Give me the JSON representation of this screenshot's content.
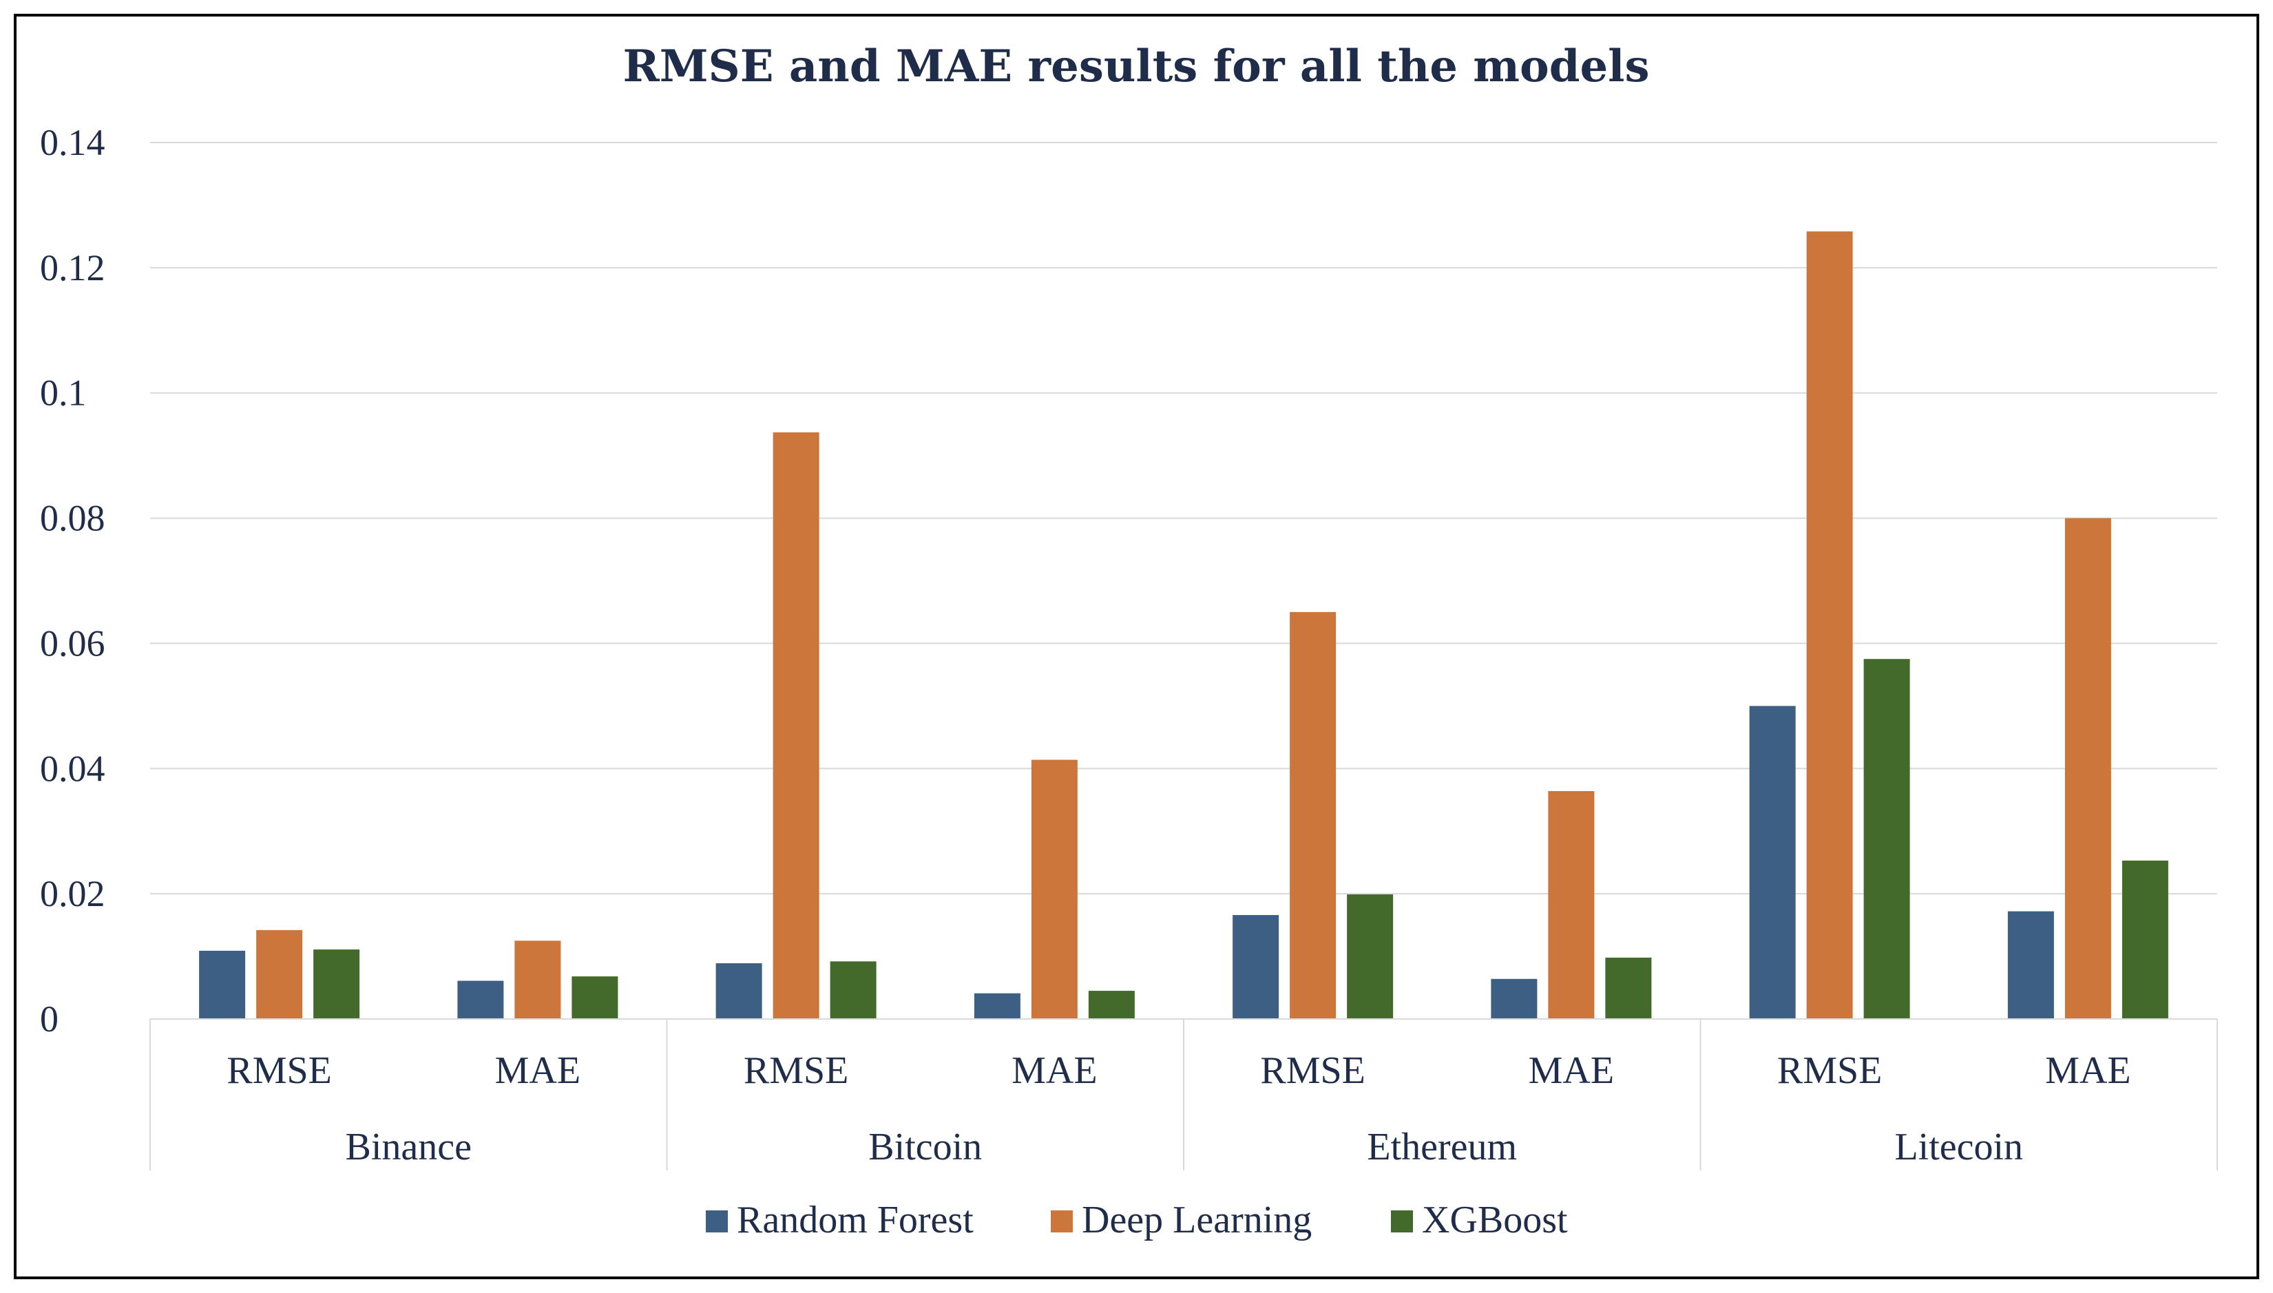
{
  "chart_data": {
    "type": "bar",
    "title": "RMSE and MAE results for all the models",
    "groups": [
      "Binance",
      "Bitcoin",
      "Ethereum",
      "Litecoin"
    ],
    "categories": [
      "RMSE",
      "MAE",
      "RMSE",
      "MAE",
      "RMSE",
      "MAE",
      "RMSE",
      "MAE"
    ],
    "series": [
      {
        "name": "Random Forest",
        "color": "#3e5f84",
        "values": [
          0.0109,
          0.0061,
          0.0089,
          0.0041,
          0.0166,
          0.0064,
          0.05,
          0.0172
        ]
      },
      {
        "name": "Deep Learning",
        "color": "#cc763b",
        "values": [
          0.0142,
          0.0125,
          0.0937,
          0.0414,
          0.065,
          0.0364,
          0.1258,
          0.08
        ]
      },
      {
        "name": "XGBoost",
        "color": "#436a2a",
        "values": [
          0.0111,
          0.0068,
          0.0092,
          0.0045,
          0.0199,
          0.0098,
          0.0575,
          0.0253
        ]
      }
    ],
    "yticks": [
      "0",
      "0.02",
      "0.04",
      "0.06",
      "0.08",
      "0.1",
      "0.12",
      "0.14"
    ],
    "ylim": [
      0,
      0.14
    ],
    "xlabel": "",
    "ylabel": "",
    "legend": "bottom"
  }
}
